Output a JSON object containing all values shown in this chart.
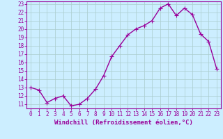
{
  "x": [
    0,
    1,
    2,
    3,
    4,
    5,
    6,
    7,
    8,
    9,
    10,
    11,
    12,
    13,
    14,
    15,
    16,
    17,
    18,
    19,
    20,
    21,
    22,
    23
  ],
  "y": [
    13.0,
    12.7,
    11.2,
    11.7,
    12.0,
    10.8,
    11.0,
    11.7,
    12.8,
    14.4,
    16.7,
    18.0,
    19.3,
    20.0,
    20.4,
    21.0,
    22.5,
    23.0,
    21.6,
    22.5,
    21.7,
    19.4,
    18.5,
    15.2
  ],
  "line_color": "#990099",
  "marker": "+",
  "markersize": 4,
  "linewidth": 1.0,
  "background_color": "#cceeff",
  "grid_color": "#aacccc",
  "xlabel": "Windchill (Refroidissement éolien,°C)",
  "xlabel_fontsize": 6.5,
  "tick_fontsize": 5.5,
  "ytick_min": 11,
  "ytick_max": 23,
  "xtick_labels": [
    "0",
    "1",
    "2",
    "3",
    "4",
    "5",
    "6",
    "7",
    "8",
    "9",
    "10",
    "11",
    "12",
    "13",
    "14",
    "15",
    "16",
    "17",
    "18",
    "19",
    "20",
    "21",
    "22",
    "23"
  ]
}
